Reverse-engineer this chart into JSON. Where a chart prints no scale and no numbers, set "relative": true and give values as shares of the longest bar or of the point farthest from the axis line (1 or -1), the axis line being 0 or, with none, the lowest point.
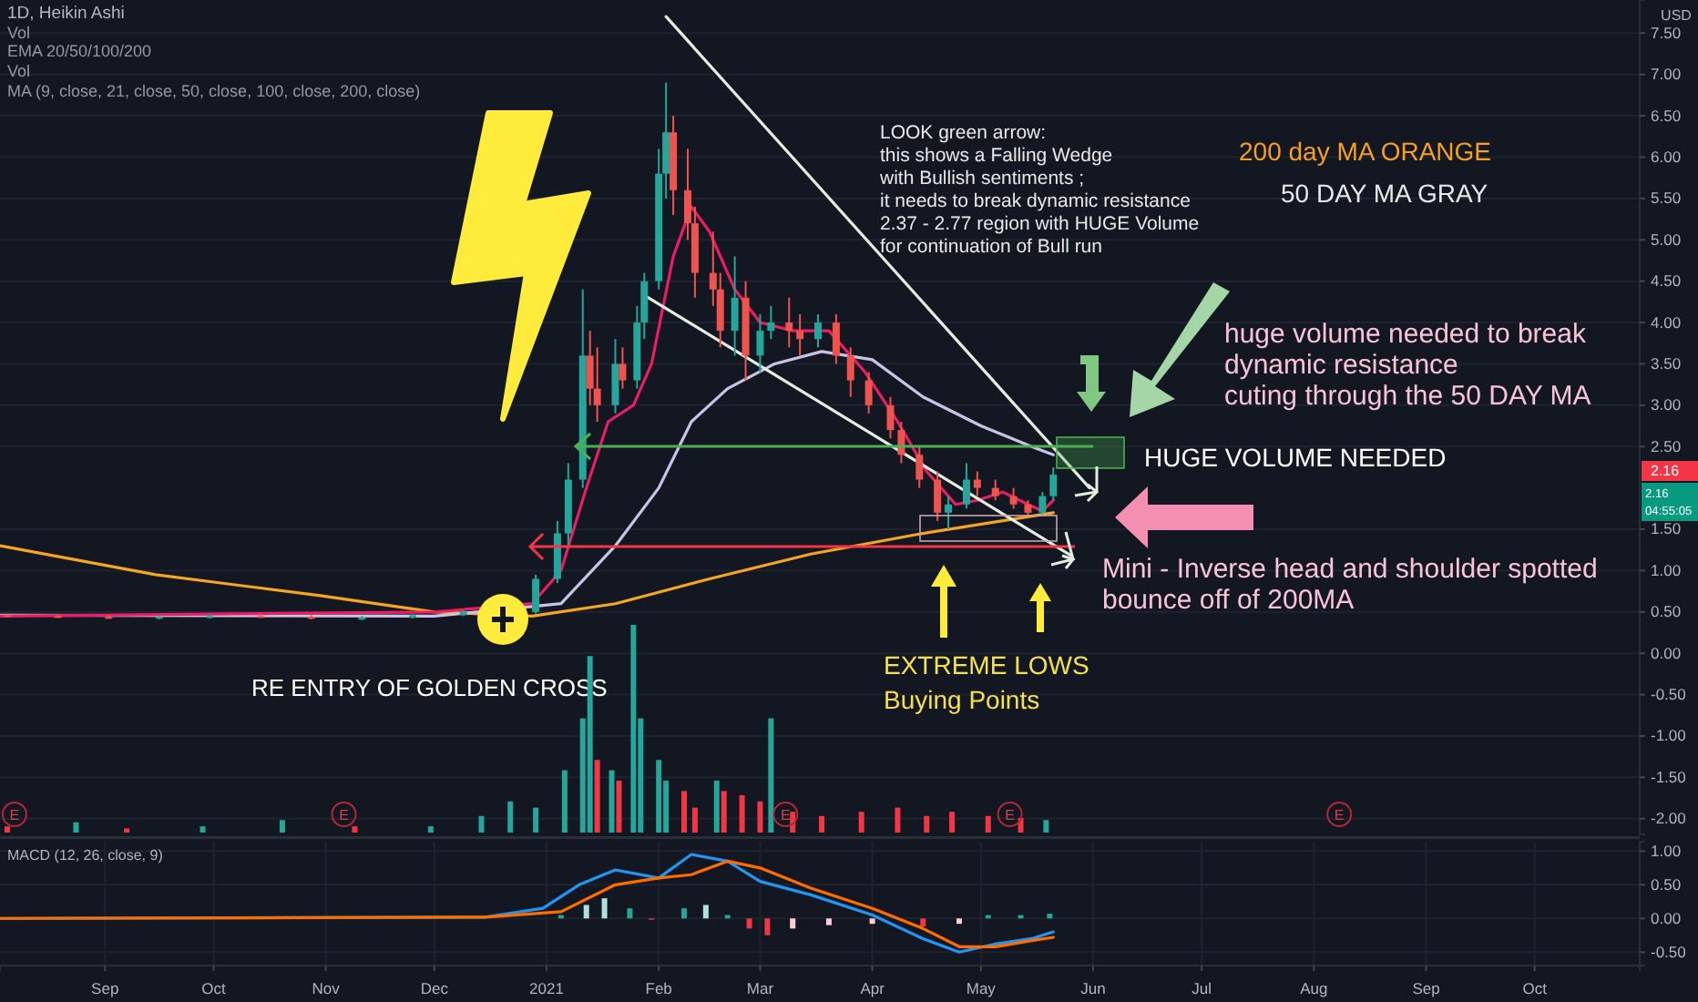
{
  "chart_data": [
    {
      "type": "candlestick",
      "title": "1D, Heikin Ashi",
      "ylabel": "USD",
      "x": [
        "2020-08-05",
        "2020-08-19",
        "2020-09-02",
        "2020-09-16",
        "2020-09-30",
        "2020-10-14",
        "2020-10-28",
        "2020-11-11",
        "2020-11-25",
        "2020-12-09",
        "2020-12-29",
        "2021-01-04",
        "2021-01-07",
        "2021-01-11",
        "2021-01-13",
        "2021-01-15",
        "2021-01-20",
        "2021-01-22",
        "2021-01-26",
        "2021-01-28",
        "2021-02-01",
        "2021-02-03",
        "2021-02-05",
        "2021-02-09",
        "2021-02-11",
        "2021-02-16",
        "2021-02-18",
        "2021-02-22",
        "2021-02-25",
        "2021-03-01",
        "2021-03-04",
        "2021-03-09",
        "2021-03-12",
        "2021-03-17",
        "2021-03-22",
        "2021-03-26",
        "2021-03-31",
        "2021-04-06",
        "2021-04-09",
        "2021-04-14",
        "2021-04-19",
        "2021-04-22",
        "2021-04-27",
        "2021-04-30",
        "2021-05-05",
        "2021-05-10",
        "2021-05-14",
        "2021-05-18",
        "2021-05-21"
      ],
      "ohlc": [
        [
          0.46,
          0.48,
          0.44,
          0.45
        ],
        [
          0.45,
          0.47,
          0.43,
          0.44
        ],
        [
          0.44,
          0.46,
          0.42,
          0.43
        ],
        [
          0.43,
          0.45,
          0.41,
          0.44
        ],
        [
          0.44,
          0.47,
          0.42,
          0.45
        ],
        [
          0.45,
          0.48,
          0.43,
          0.44
        ],
        [
          0.44,
          0.46,
          0.41,
          0.42
        ],
        [
          0.42,
          0.45,
          0.4,
          0.43
        ],
        [
          0.43,
          0.47,
          0.42,
          0.46
        ],
        [
          0.46,
          0.52,
          0.45,
          0.5
        ],
        [
          0.5,
          0.95,
          0.48,
          0.9
        ],
        [
          0.9,
          1.6,
          0.85,
          1.45
        ],
        [
          1.45,
          2.3,
          1.3,
          2.1
        ],
        [
          2.1,
          4.4,
          2.0,
          3.6
        ],
        [
          3.6,
          3.9,
          3.0,
          3.2
        ],
        [
          3.2,
          3.7,
          2.8,
          3.0
        ],
        [
          3.0,
          3.8,
          2.9,
          3.5
        ],
        [
          3.5,
          3.7,
          3.2,
          3.3
        ],
        [
          3.3,
          4.2,
          3.2,
          4.0
        ],
        [
          4.0,
          4.6,
          3.8,
          4.5
        ],
        [
          4.5,
          6.1,
          4.4,
          5.8
        ],
        [
          5.8,
          6.9,
          5.5,
          6.3
        ],
        [
          6.3,
          6.5,
          5.3,
          5.6
        ],
        [
          5.6,
          6.1,
          5.0,
          5.2
        ],
        [
          5.2,
          5.4,
          4.3,
          4.6
        ],
        [
          4.6,
          5.1,
          4.2,
          4.4
        ],
        [
          4.4,
          4.6,
          3.7,
          3.9
        ],
        [
          3.9,
          4.8,
          3.6,
          4.3
        ],
        [
          4.3,
          4.5,
          3.3,
          3.6
        ],
        [
          3.6,
          4.1,
          3.4,
          3.9
        ],
        [
          3.9,
          4.2,
          3.8,
          4.0
        ],
        [
          4.0,
          4.3,
          3.7,
          3.9
        ],
        [
          3.9,
          4.1,
          3.6,
          3.8
        ],
        [
          3.8,
          4.1,
          3.7,
          4.0
        ],
        [
          4.0,
          4.1,
          3.5,
          3.6
        ],
        [
          3.6,
          3.7,
          3.1,
          3.3
        ],
        [
          3.3,
          3.4,
          2.9,
          3.0
        ],
        [
          3.0,
          3.1,
          2.6,
          2.7
        ],
        [
          2.7,
          2.8,
          2.3,
          2.4
        ],
        [
          2.4,
          2.5,
          2.0,
          2.1
        ],
        [
          2.1,
          2.2,
          1.6,
          1.7
        ],
        [
          1.7,
          1.9,
          1.5,
          1.8
        ],
        [
          1.8,
          2.3,
          1.75,
          2.1
        ],
        [
          2.1,
          2.2,
          1.9,
          2.0
        ],
        [
          2.0,
          2.1,
          1.85,
          1.9
        ],
        [
          1.9,
          2.0,
          1.75,
          1.8
        ],
        [
          1.8,
          1.85,
          1.65,
          1.7
        ],
        [
          1.7,
          1.95,
          1.68,
          1.9
        ],
        [
          1.9,
          2.25,
          1.85,
          2.16
        ]
      ],
      "series": [
        {
          "type": "line",
          "color": "#f6a623",
          "x": [
            "2020-08-03",
            "2020-09-15",
            "2020-10-30",
            "2020-12-01",
            "2020-12-28",
            "2021-01-20",
            "2021-02-15",
            "2021-03-15",
            "2021-04-15",
            "2021-05-21"
          ],
          "values": [
            1.3,
            0.95,
            0.7,
            0.5,
            0.45,
            0.6,
            0.9,
            1.2,
            1.45,
            1.7
          ]
        },
        {
          "type": "line",
          "color": "#c9c3e6",
          "x": [
            "2020-08-03",
            "2020-12-01",
            "2021-01-05",
            "2021-01-20",
            "2021-02-01",
            "2021-02-10",
            "2021-02-20",
            "2021-03-05",
            "2021-03-18",
            "2021-04-01",
            "2021-04-15",
            "2021-05-01",
            "2021-05-15",
            "2021-05-21"
          ],
          "values": [
            0.46,
            0.45,
            0.6,
            1.3,
            2.0,
            2.8,
            3.2,
            3.5,
            3.65,
            3.55,
            3.1,
            2.75,
            2.5,
            2.4
          ]
        },
        {
          "type": "line",
          "color": "#e91e63",
          "x": [
            "2020-08-03",
            "2020-12-01",
            "2020-12-28",
            "2021-01-05",
            "2021-01-12",
            "2021-01-18",
            "2021-01-25",
            "2021-01-30",
            "2021-02-05",
            "2021-02-10",
            "2021-02-15",
            "2021-02-22",
            "2021-03-01",
            "2021-03-10",
            "2021-03-20",
            "2021-03-30",
            "2021-04-08",
            "2021-04-16",
            "2021-04-24",
            "2021-04-30",
            "2021-05-07",
            "2021-05-14",
            "2021-05-18",
            "2021-05-21"
          ],
          "values": [
            0.45,
            0.5,
            0.6,
            1.0,
            2.0,
            2.8,
            3.0,
            3.5,
            4.8,
            5.4,
            5.1,
            4.4,
            4.0,
            3.9,
            3.9,
            3.4,
            2.8,
            2.2,
            1.8,
            1.85,
            1.95,
            1.8,
            1.72,
            1.85
          ]
        },
        {
          "type": "line",
          "color": "#e3ede0",
          "x": [
            "2021-02-03",
            "2021-05-31"
          ],
          "values": [
            7.7,
            2.0
          ]
        },
        {
          "type": "line",
          "color": "#e3ede0",
          "x": [
            "2021-01-28",
            "2021-05-26"
          ],
          "values": [
            4.33,
            1.18
          ]
        }
      ],
      "xlim": [
        "2020-08-03",
        "2021-10-30"
      ],
      "ylim": [
        -2.19,
        7.9
      ],
      "yticks": [
        {
          "value": -2,
          "label": "-2.00"
        },
        {
          "value": -1.5,
          "label": "-1.50"
        },
        {
          "value": -1,
          "label": "-1.00"
        },
        {
          "value": -0.5,
          "label": "-0.50"
        },
        {
          "value": 0,
          "label": "0.00"
        },
        {
          "value": 0.5,
          "label": "0.50"
        },
        {
          "value": 1,
          "label": "1.00"
        },
        {
          "value": 1.5,
          "label": "1.50"
        },
        {
          "value": 2.5,
          "label": "2.50"
        },
        {
          "value": 3,
          "label": "3.00"
        },
        {
          "value": 3.5,
          "label": "3.50"
        },
        {
          "value": 4,
          "label": "4.00"
        },
        {
          "value": 4.5,
          "label": "4.50"
        },
        {
          "value": 5,
          "label": "5.00"
        },
        {
          "value": 5.5,
          "label": "5.50"
        },
        {
          "value": 6,
          "label": "6.00"
        },
        {
          "value": 6.5,
          "label": "6.50"
        },
        {
          "value": 7,
          "label": "7.00"
        },
        {
          "value": 7.5,
          "label": "7.50"
        }
      ],
      "grid": "y",
      "tick_labels": "y",
      "annotations": [
        "Vol",
        "EMA 20/50/100/200",
        "Vol",
        "MA (9, close, 21, close, 50, close, 100, close, 200, close)",
        "LOOK green arrow:\nthis shows a Falling Wedge\nwith Bullish sentiments ;\nit needs to break dynamic resistance\n2.37 - 2.77 region with HUGE Volume\nfor continuation of Bull run",
        "200 day MA ORANGE",
        "50 DAY MA GRAY",
        "huge volume needed to break\ndynamic resistance\ncuting through the 50 DAY MA",
        "HUGE VOLUME NEEDED",
        "Mini - Inverse head and shoulder spotted\nbounce off of 200MA",
        "RE ENTRY OF GOLDEN CROSS",
        "EXTREME LOWS\nBuying Points",
        "2.16",
        "2.16\n04:55:05"
      ]
    },
    {
      "type": "bar",
      "relative": true,
      "tick_labels": false,
      "xlim": [
        "2020-08-03",
        "2021-10-30"
      ],
      "x": [
        "2020-08-05",
        "2020-08-24",
        "2020-09-07",
        "2020-09-28",
        "2020-10-20",
        "2020-11-09",
        "2020-11-30",
        "2020-12-14",
        "2020-12-22",
        "2020-12-29",
        "2021-01-06",
        "2021-01-11",
        "2021-01-13",
        "2021-01-15",
        "2021-01-19",
        "2021-01-21",
        "2021-01-25",
        "2021-01-27",
        "2021-02-01",
        "2021-02-03",
        "2021-02-08",
        "2021-02-11",
        "2021-02-17",
        "2021-02-19",
        "2021-02-24",
        "2021-03-01",
        "2021-03-04",
        "2021-03-10",
        "2021-03-18",
        "2021-03-29",
        "2021-04-08",
        "2021-04-16",
        "2021-04-23",
        "2021-05-03",
        "2021-05-12",
        "2021-05-19"
      ],
      "values": [
        0.03,
        0.05,
        0.02,
        0.03,
        0.06,
        0.03,
        0.03,
        0.08,
        0.15,
        0.12,
        0.3,
        0.55,
        0.85,
        0.35,
        0.3,
        0.25,
        1,
        0.55,
        0.35,
        0.25,
        0.2,
        0.12,
        0.25,
        0.2,
        0.18,
        0.15,
        0.55,
        0.1,
        0.08,
        0.1,
        0.12,
        0.08,
        0.1,
        0.08,
        0.07,
        0.06
      ],
      "colors": [
        "#f23645",
        "#26a69a",
        "#f23645",
        "#26a69a",
        "#26a69a",
        "#f23645",
        "#26a69a",
        "#26a69a",
        "#26a69a",
        "#26a69a",
        "#26a69a",
        "#26a69a",
        "#26a69a",
        "#f23645",
        "#26a69a",
        "#f23645",
        "#26a69a",
        "#26a69a",
        "#26a69a",
        "#26a69a",
        "#f23645",
        "#f23645",
        "#26a69a",
        "#f23645",
        "#f23645",
        "#f23645",
        "#26a69a",
        "#f23645",
        "#f23645",
        "#f23645",
        "#f23645",
        "#f23645",
        "#f23645",
        "#f23645",
        "#f23645",
        "#26a69a"
      ],
      "annotations": [
        {
          "text": "E",
          "x": "2020-08-07"
        },
        {
          "text": "E",
          "x": "2020-11-06"
        },
        {
          "text": "E",
          "x": "2021-03-08"
        },
        {
          "text": "E",
          "x": "2021-05-09"
        },
        {
          "text": "E",
          "x": "2021-08-08"
        }
      ]
    },
    {
      "type": "line",
      "xlim": [
        "2020-08-03",
        "2021-10-30"
      ],
      "xticks": [
        {
          "value": "2020-09-01",
          "label": "Sep"
        },
        {
          "value": "2020-10-01",
          "label": "Oct"
        },
        {
          "value": "2020-11-01",
          "label": "Nov"
        },
        {
          "value": "2020-12-01",
          "label": "Dec"
        },
        {
          "value": "2021-01-01",
          "label": "2021"
        },
        {
          "value": "2021-02-01",
          "label": "Feb"
        },
        {
          "value": "2021-03-01",
          "label": "Mar"
        },
        {
          "value": "2021-04-01",
          "label": "Apr"
        },
        {
          "value": "2021-05-01",
          "label": "May"
        },
        {
          "value": "2021-06-01",
          "label": "Jun"
        },
        {
          "value": "2021-07-01",
          "label": "Jul"
        },
        {
          "value": "2021-08-01",
          "label": "Aug"
        },
        {
          "value": "2021-09-01",
          "label": "Sep"
        },
        {
          "value": "2021-10-01",
          "label": "Oct"
        }
      ],
      "ylim": [
        -0.7,
        1.14
      ],
      "yticks": [
        {
          "value": -0.5,
          "label": "-0.50"
        },
        {
          "value": 0,
          "label": "0.00"
        },
        {
          "value": 0.5,
          "label": "0.50"
        },
        {
          "value": 1,
          "label": "1.00"
        }
      ],
      "grid": true,
      "series": [
        {
          "type": "bar",
          "x": [
            "2021-01-05",
            "2021-01-12",
            "2021-01-17",
            "2021-01-24",
            "2021-01-30",
            "2021-02-08",
            "2021-02-14",
            "2021-02-20",
            "2021-02-26",
            "2021-03-03",
            "2021-03-10",
            "2021-03-20",
            "2021-04-01",
            "2021-04-15",
            "2021-04-25",
            "2021-05-03",
            "2021-05-12",
            "2021-05-20"
          ],
          "values": [
            0.05,
            0.2,
            0.3,
            0.15,
            -0.02,
            0.15,
            0.2,
            0.05,
            -0.15,
            -0.25,
            -0.15,
            -0.1,
            -0.08,
            -0.12,
            -0.08,
            0.05,
            0.05,
            0.07
          ],
          "colors": [
            "#26a69a",
            "#b2dfdb",
            "#b2dfdb",
            "#26a69a",
            "#f23645",
            "#26a69a",
            "#b2dfdb",
            "#26a69a",
            "#f23645",
            "#f23645",
            "#ffcdd2",
            "#ffcdd2",
            "#ffcdd2",
            "#f23645",
            "#ffcdd2",
            "#26a69a",
            "#26a69a",
            "#26a69a"
          ]
        },
        {
          "color": "#2196f3",
          "x": [
            "2020-08-03",
            "2020-12-15",
            "2020-12-31",
            "2021-01-10",
            "2021-01-20",
            "2021-02-01",
            "2021-02-10",
            "2021-02-20",
            "2021-03-01",
            "2021-03-15",
            "2021-04-01",
            "2021-04-15",
            "2021-04-25",
            "2021-05-05",
            "2021-05-15",
            "2021-05-21"
          ],
          "values": [
            0,
            0.02,
            0.15,
            0.5,
            0.72,
            0.6,
            0.95,
            0.85,
            0.55,
            0.35,
            0.05,
            -0.3,
            -0.5,
            -0.38,
            -0.3,
            -0.2
          ]
        },
        {
          "color": "#ff6d00",
          "x": [
            "2020-08-03",
            "2020-12-15",
            "2021-01-05",
            "2021-01-20",
            "2021-02-01",
            "2021-02-10",
            "2021-02-20",
            "2021-03-01",
            "2021-03-15",
            "2021-04-01",
            "2021-04-15",
            "2021-04-25",
            "2021-05-05",
            "2021-05-15",
            "2021-05-21"
          ],
          "values": [
            0,
            0.02,
            0.1,
            0.5,
            0.6,
            0.65,
            0.85,
            0.75,
            0.45,
            0.15,
            -0.15,
            -0.42,
            -0.42,
            -0.33,
            -0.28
          ]
        }
      ],
      "annotations": [
        "MACD (12, 26, close, 9)"
      ]
    }
  ]
}
